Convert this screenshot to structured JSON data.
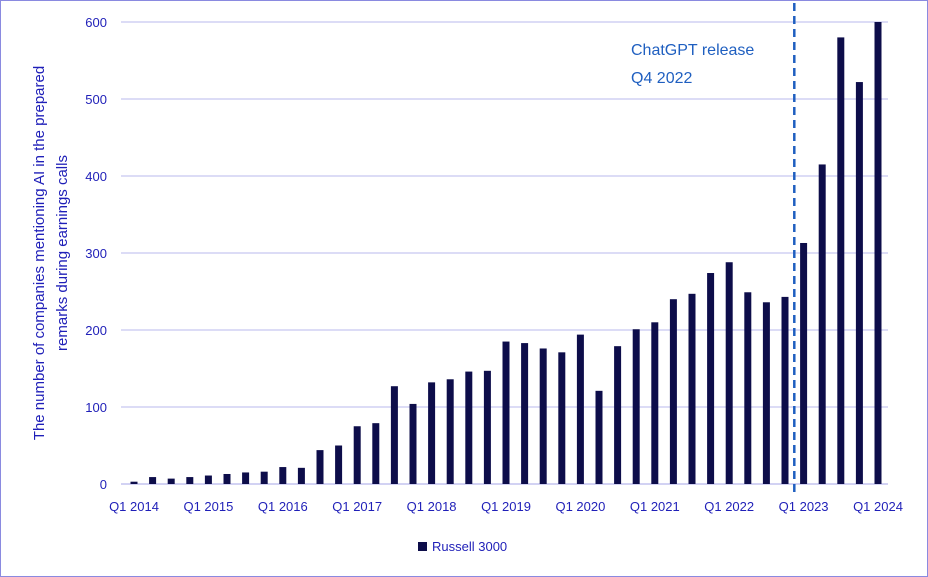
{
  "chart_data": {
    "type": "bar",
    "ylabel_line1": "The number of companies mentioning AI in the prepared",
    "ylabel_line2": "remarks during earnings calls",
    "ylim": [
      0,
      600
    ],
    "yticks": [
      0,
      100,
      200,
      300,
      400,
      500,
      600
    ],
    "grid": true,
    "x_tick_labels": [
      {
        "index": 0,
        "label": "Q1 2014"
      },
      {
        "index": 4,
        "label": "Q1 2015"
      },
      {
        "index": 8,
        "label": "Q1 2016"
      },
      {
        "index": 12,
        "label": "Q1 2017"
      },
      {
        "index": 16,
        "label": "Q1 2018"
      },
      {
        "index": 20,
        "label": "Q1 2019"
      },
      {
        "index": 24,
        "label": "Q1 2020"
      },
      {
        "index": 28,
        "label": "Q1 2021"
      },
      {
        "index": 32,
        "label": "Q1 2022"
      },
      {
        "index": 36,
        "label": "Q1 2023"
      },
      {
        "index": 40,
        "label": "Q1 2024"
      }
    ],
    "categories": [
      "Q1 2014",
      "Q2 2014",
      "Q3 2014",
      "Q4 2014",
      "Q1 2015",
      "Q2 2015",
      "Q3 2015",
      "Q4 2015",
      "Q1 2016",
      "Q2 2016",
      "Q3 2016",
      "Q4 2016",
      "Q1 2017",
      "Q2 2017",
      "Q3 2017",
      "Q4 2017",
      "Q1 2018",
      "Q2 2018",
      "Q3 2018",
      "Q4 2018",
      "Q1 2019",
      "Q2 2019",
      "Q3 2019",
      "Q4 2019",
      "Q1 2020",
      "Q2 2020",
      "Q3 2020",
      "Q4 2020",
      "Q1 2021",
      "Q2 2021",
      "Q3 2021",
      "Q4 2021",
      "Q1 2022",
      "Q2 2022",
      "Q3 2022",
      "Q4 2022",
      "Q1 2023",
      "Q2 2023",
      "Q3 2023",
      "Q4 2023",
      "Q1 2024"
    ],
    "series": [
      {
        "name": "Russell 3000",
        "color": "#0d0d4a",
        "values": [
          3,
          9,
          7,
          9,
          11,
          13,
          15,
          16,
          22,
          21,
          44,
          50,
          75,
          79,
          127,
          104,
          132,
          136,
          146,
          147,
          185,
          183,
          176,
          171,
          194,
          121,
          179,
          201,
          210,
          240,
          247,
          274,
          288,
          249,
          236,
          243,
          313,
          415,
          580,
          522,
          600
        ]
      }
    ],
    "annotation": {
      "line1": "ChatGPT release",
      "line2": "Q4 2022",
      "at_index": 35,
      "line_color": "#1f5fc0"
    },
    "legend": {
      "position": "bottom-center",
      "label": "Russell 3000"
    },
    "gridline_color": "#b8b8ec",
    "axis_text_color": "#1f1fb8"
  }
}
